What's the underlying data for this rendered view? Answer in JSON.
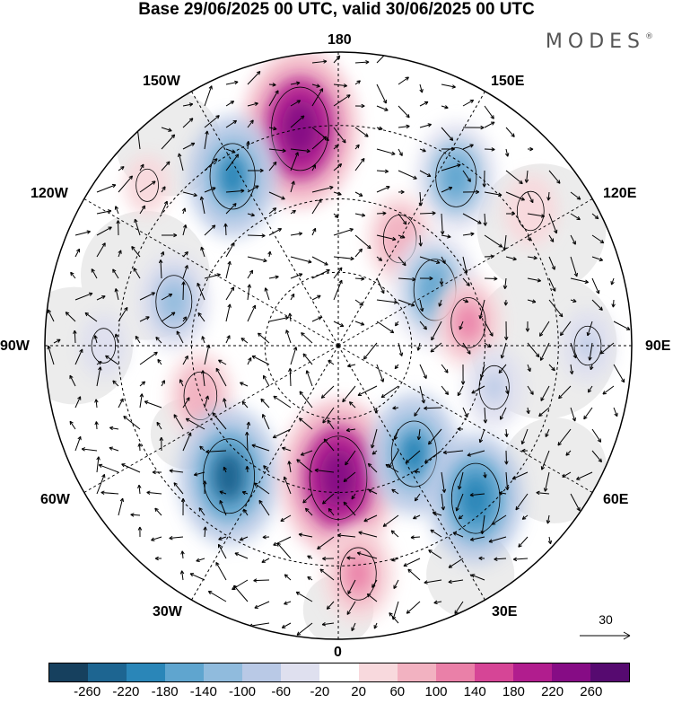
{
  "title": "Base 29/06/2025 00 UTC, valid 30/06/2025 00 UTC",
  "brand": "MODES",
  "brand_mark": "®",
  "longitude_labels": {
    "top": "180",
    "bottom": "0",
    "left": "90W",
    "right": "90E",
    "upper_left_1": "150W",
    "upper_left_2": "120W",
    "upper_right_1": "150E",
    "upper_right_2": "120E",
    "lower_left_1": "60W",
    "lower_left_2": "30W",
    "lower_right_1": "60E",
    "lower_right_2": "30E"
  },
  "wind_scale": {
    "value": "30"
  },
  "colorbar": {
    "ticks": [
      "-260",
      "-220",
      "-180",
      "-140",
      "-100",
      "-60",
      "-20",
      "20",
      "60",
      "100",
      "140",
      "180",
      "220",
      "260"
    ],
    "colors": [
      "#16405e",
      "#1d6591",
      "#2a86b8",
      "#5fa5cf",
      "#90bbdd",
      "#b9c9e6",
      "#dfe0ef",
      "#ffffff",
      "#f8d9dd",
      "#f2b2c1",
      "#ea80a8",
      "#d64596",
      "#b11d8e",
      "#860c85",
      "#560a70"
    ]
  },
  "map": {
    "projection": "north-polar-stereographic",
    "field_anomalies": [
      {
        "lon": 190,
        "r": 0.75,
        "value": 260
      },
      {
        "lon": 145,
        "r": 0.7,
        "value": -150
      },
      {
        "lon": 150,
        "r": 0.42,
        "value": 100
      },
      {
        "lon": 120,
        "r": 0.38,
        "value": -160
      },
      {
        "lon": 100,
        "r": 0.45,
        "value": 110
      },
      {
        "lon": 212,
        "r": 0.68,
        "value": -180
      },
      {
        "lon": 125,
        "r": 0.8,
        "value": 60
      },
      {
        "lon": 255,
        "r": 0.58,
        "value": -120
      },
      {
        "lon": 290,
        "r": 0.5,
        "value": 100
      },
      {
        "lon": 320,
        "r": 0.58,
        "value": -220
      },
      {
        "lon": 0,
        "r": 0.45,
        "value": 260
      },
      {
        "lon": 5,
        "r": 0.78,
        "value": 120
      },
      {
        "lon": 35,
        "r": 0.45,
        "value": -180
      },
      {
        "lon": 42,
        "r": 0.7,
        "value": -200
      },
      {
        "lon": 75,
        "r": 0.55,
        "value": -80
      },
      {
        "lon": 270,
        "r": 0.8,
        "value": -40
      },
      {
        "lon": 230,
        "r": 0.85,
        "value": 30
      },
      {
        "lon": 90,
        "r": 0.85,
        "value": -60
      }
    ]
  }
}
